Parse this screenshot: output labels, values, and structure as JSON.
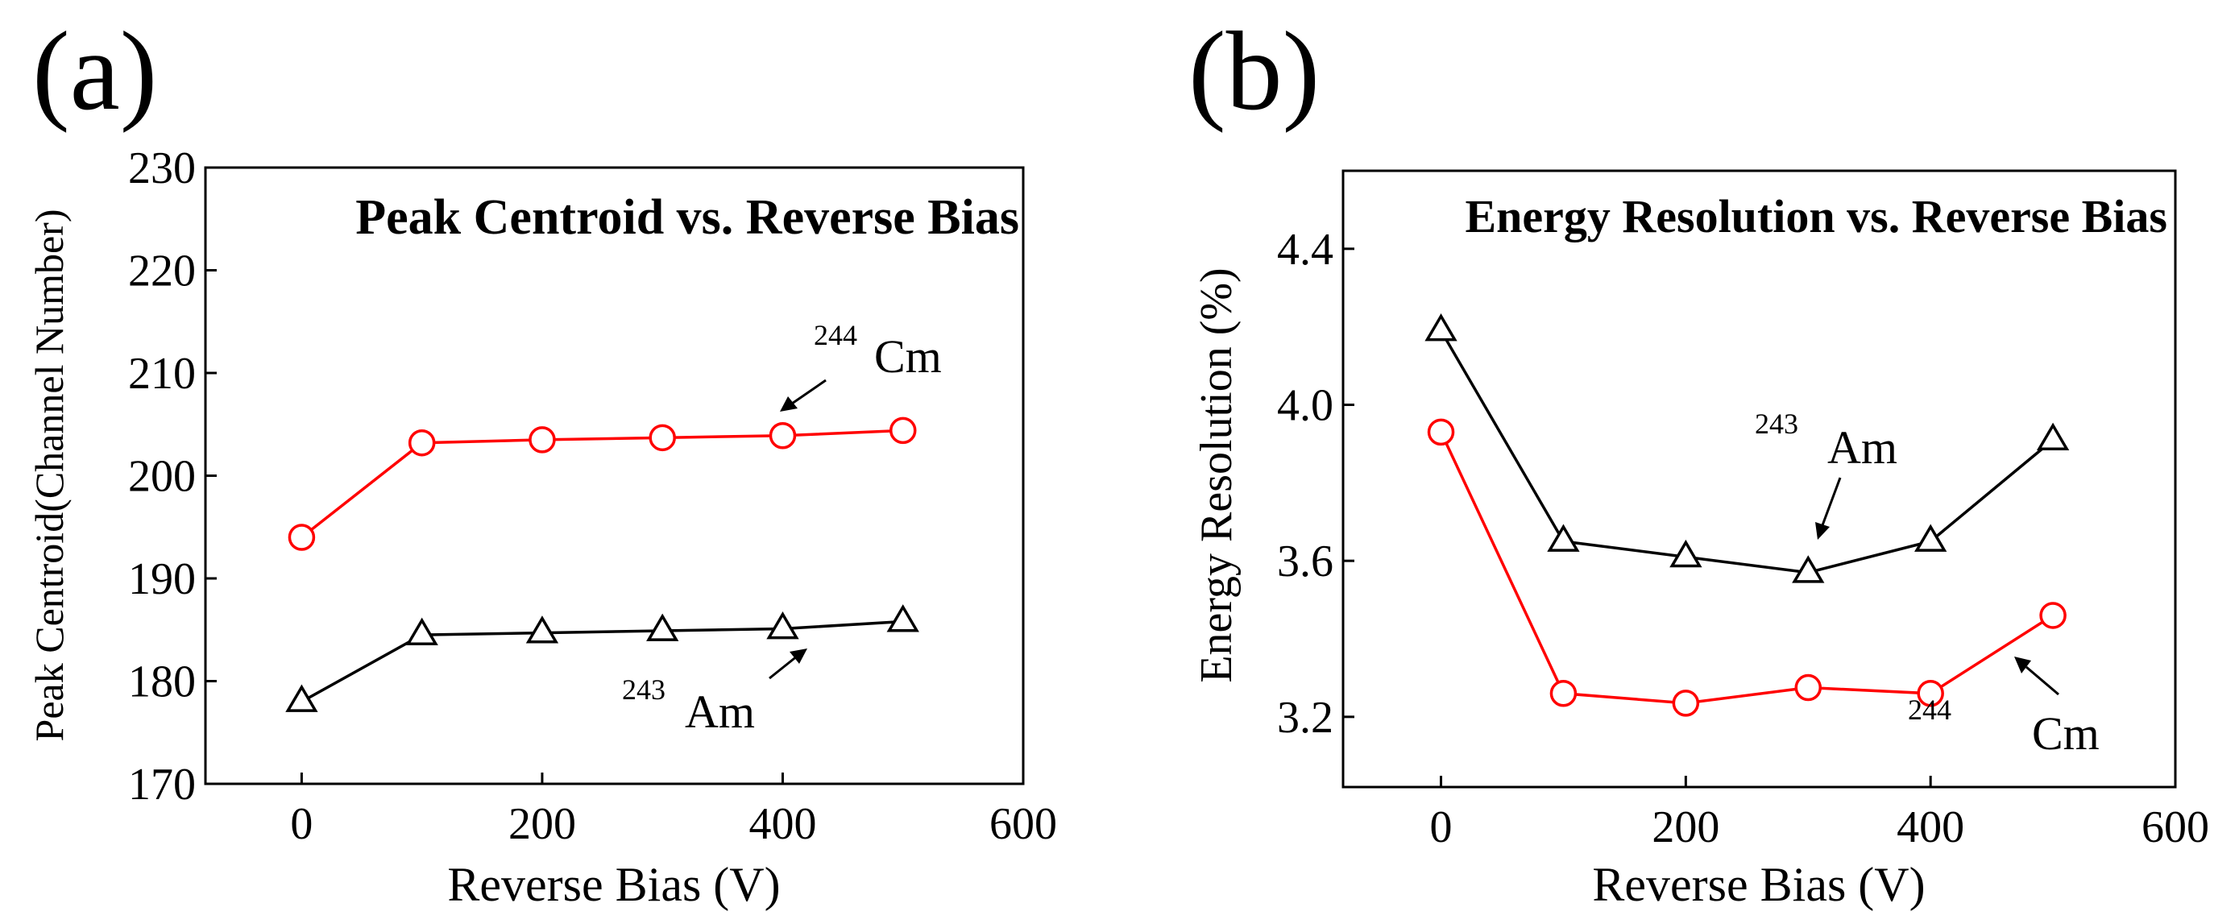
{
  "panel_labels": [
    "(a)",
    "(b)"
  ],
  "chart_data": [
    {
      "type": "line",
      "title": "Peak Centroid vs. Reverse Bias",
      "xlabel": "Reverse Bias (V)",
      "ylabel": "Peak Centroid(Channel Number)",
      "xlim": [
        -80,
        600
      ],
      "ylim": [
        170,
        230
      ],
      "xticks": [
        0,
        200,
        400,
        600
      ],
      "yticks": [
        170,
        180,
        190,
        200,
        210,
        220,
        230
      ],
      "ytick_decimals": 0,
      "x": [
        0,
        100,
        200,
        300,
        400,
        500
      ],
      "series": [
        {
          "name": "Cm",
          "mass": "244",
          "color": "#ff0000",
          "marker": "circle",
          "values": [
            194.0,
            203.2,
            203.5,
            203.7,
            203.9,
            204.4
          ]
        },
        {
          "name": "Am",
          "mass": "243",
          "color": "#000000",
          "marker": "triangle",
          "values": [
            178.0,
            184.5,
            184.7,
            184.9,
            185.1,
            185.8
          ]
        }
      ],
      "annotations": [
        {
          "mass": "244",
          "element": "Cm",
          "color": "#000000"
        },
        {
          "mass": "243",
          "element": "Am",
          "color": "#000000"
        }
      ]
    },
    {
      "type": "line",
      "title": "Energy Resolution vs. Reverse Bias",
      "xlabel": "Reverse Bias (V)",
      "ylabel": "Energy Resolution (%)",
      "xlim": [
        -80,
        600
      ],
      "ylim": [
        3.02,
        4.6
      ],
      "xticks": [
        0,
        200,
        400,
        600
      ],
      "yticks": [
        3.2,
        3.6,
        4.0,
        4.4
      ],
      "ytick_decimals": 1,
      "x": [
        0,
        100,
        200,
        300,
        400,
        500
      ],
      "series": [
        {
          "name": "Am",
          "mass": "243",
          "color": "#000000",
          "marker": "triangle",
          "values": [
            4.19,
            3.65,
            3.61,
            3.57,
            3.65,
            3.91
          ]
        },
        {
          "name": "Cm",
          "mass": "244",
          "color": "#ff0000",
          "marker": "circle",
          "values": [
            3.93,
            3.26,
            3.235,
            3.275,
            3.26,
            3.46
          ]
        }
      ],
      "annotations": [
        {
          "mass": "243",
          "element": "Am",
          "color": "#000000"
        },
        {
          "mass": "244",
          "element": "Cm",
          "color": "#000000"
        }
      ]
    }
  ]
}
